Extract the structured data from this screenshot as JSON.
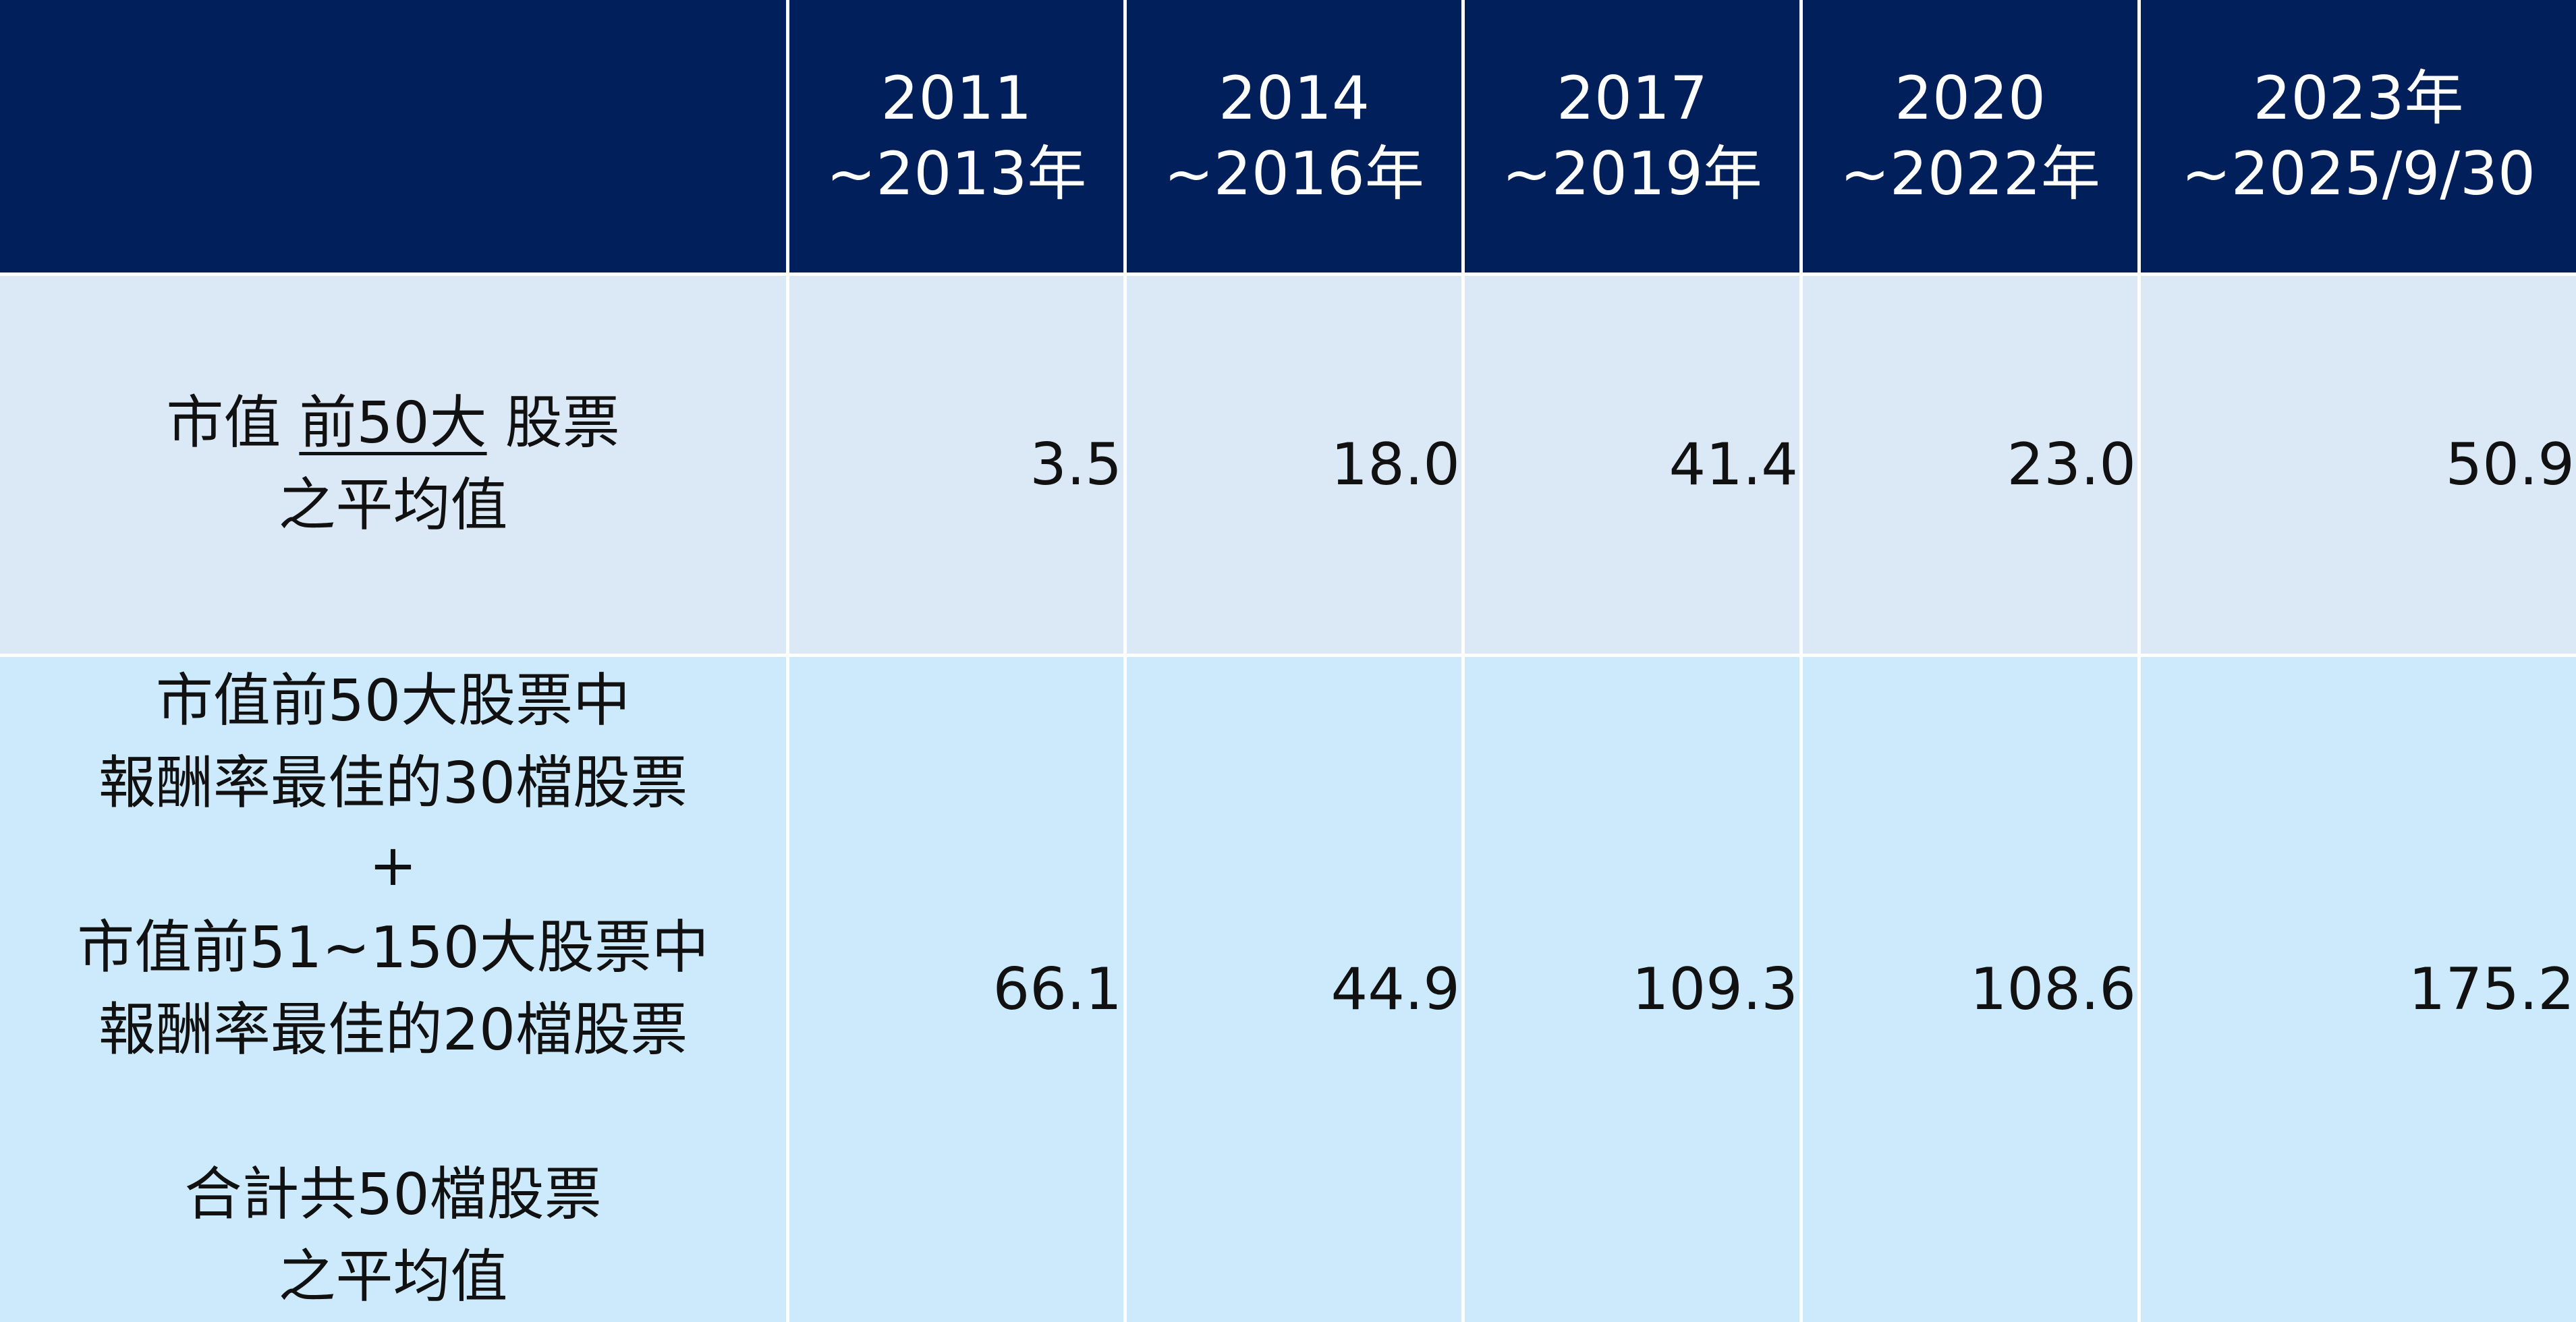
{
  "table": {
    "header": [
      {
        "line1": "2011",
        "line2": "~2013年"
      },
      {
        "line1": "2014",
        "line2": "~2016年"
      },
      {
        "line1": "2017",
        "line2": "~2019年"
      },
      {
        "line1": "2020",
        "line2": "~2022年"
      },
      {
        "line1": "2023年",
        "line2": "~2025/9/30"
      }
    ],
    "rows": [
      {
        "label": {
          "line1_pre": "市值 ",
          "line1_underlined": "前50大",
          "line1_post": " 股票",
          "line2": "之平均值"
        },
        "values": [
          "3.5",
          "18.0",
          "41.4",
          "23.0",
          "50.9"
        ]
      },
      {
        "label": {
          "line1": "市值前50大股票中",
          "line2": "報酬率最佳的30檔股票",
          "line3": "+",
          "line4": "市值前51~150大股票中",
          "line5": "報酬率最佳的20檔股票",
          "line6": "合計共50檔股票",
          "line7": "之平均值"
        },
        "values": [
          "66.1",
          "44.9",
          "109.3",
          "108.6",
          "175.2"
        ]
      }
    ]
  },
  "colors": {
    "header_bg": "#001f5b",
    "row1_bg": "#dbe9f6",
    "row2_bg": "#cdeafd",
    "grid_line": "#ffffff",
    "text": "#111111"
  }
}
